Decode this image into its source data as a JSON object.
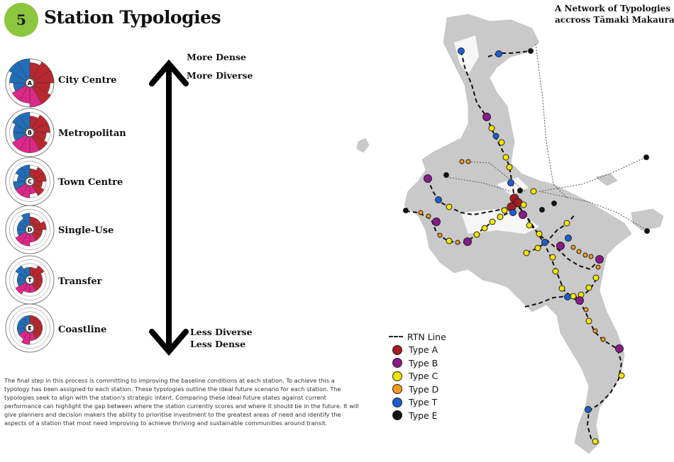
{
  "header": {
    "badge_number": "5",
    "title": "Station Typologies"
  },
  "map": {
    "title_line1": "A Network of Typologies",
    "title_line2": "accross Tāmaki Makaurau",
    "legend": [
      {
        "label": "RTN Line",
        "kind": "line"
      },
      {
        "label": "Type A",
        "color": "#a51b1e"
      },
      {
        "label": "Type B",
        "color": "#8b1a8a"
      },
      {
        "label": "Type C",
        "color": "#f2e600"
      },
      {
        "label": "Type D",
        "color": "#f39a1e"
      },
      {
        "label": "Type T",
        "color": "#1a5fd0"
      },
      {
        "label": "Type E",
        "color": "#111111"
      }
    ]
  },
  "typologies": [
    {
      "letter": "A",
      "name": "City Centre",
      "levels": [
        4,
        5,
        5,
        4,
        5,
        5,
        4,
        4,
        3,
        4,
        5,
        5
      ]
    },
    {
      "letter": "B",
      "name": "Metropolitan",
      "levels": [
        3,
        4,
        4,
        3,
        4,
        4,
        4,
        4,
        3,
        3,
        4,
        4
      ]
    },
    {
      "letter": "C",
      "name": "Town Centre",
      "levels": [
        2,
        3,
        3,
        2,
        3,
        2,
        3,
        3,
        3,
        2,
        3,
        3
      ]
    },
    {
      "letter": "D",
      "name": "Single-Use",
      "levels": [
        2,
        2,
        3,
        2,
        2,
        2,
        3,
        3,
        2,
        2,
        2,
        3
      ]
    },
    {
      "letter": "T",
      "name": "Transfer",
      "levels": [
        2,
        3,
        2,
        2,
        2,
        2,
        2,
        3,
        2,
        2,
        3,
        2
      ]
    },
    {
      "letter": "E",
      "name": "Coastline",
      "levels": [
        2,
        2,
        2,
        2,
        2,
        2,
        3,
        2,
        2,
        2,
        2,
        2
      ]
    }
  ],
  "axis": {
    "top_line1": "More Dense",
    "top_line2": "More Diverse",
    "bottom_line1": "Less Diverse",
    "bottom_line2": "Less Dense"
  },
  "description": "The final step in this process is committing to improving the baseline conditions at each station. To achieve this a typology has been assigned to each station. These typologies outline the ideal future scenario for each station. The typologies seek to align with the station's strategic intent. Comparing these ideal future states against current performance can highlight the gap between where the station currently scores and where it should be in the future. It will give planners and decision makers the ability to prioritise investment to the greatest areas of need and identify the aspects of a station that most need improving to achieve thriving and sustainable communities around transit.",
  "colors": {
    "diversity": "#1f6fc0",
    "density": "#c0242c",
    "community": "#e6238c",
    "accent": "#8dc63f"
  }
}
